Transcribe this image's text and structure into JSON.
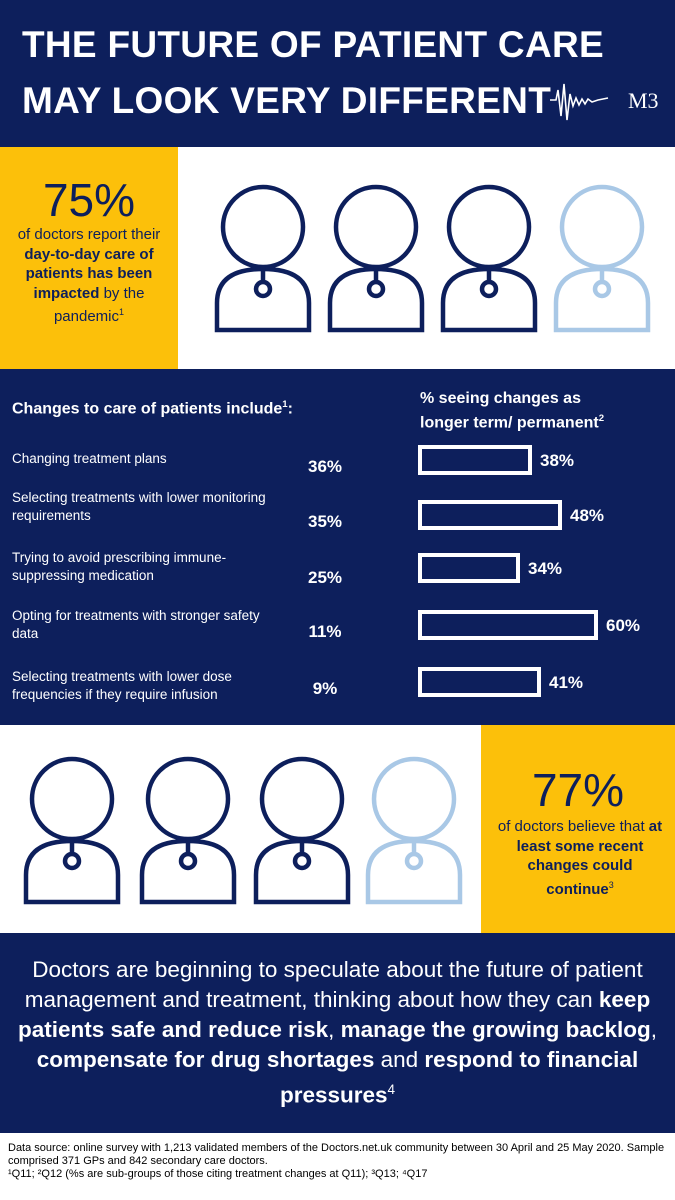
{
  "header": {
    "title_line1": "THE FUTURE OF PATIENT CARE",
    "title_line2": "MAY LOOK VERY DIFFERENT",
    "logo_text": "M3"
  },
  "stat_top": {
    "value": "75%",
    "text_a": "of doctors report their ",
    "text_b": "day-to-day care of patients has been impacted",
    "text_c": " by the pandemic",
    "ref": "1",
    "icons": {
      "filled": 3,
      "total": 4,
      "dark_color": "#0d1f5c",
      "light_color": "#a9c8e6"
    }
  },
  "changes": {
    "title": "Changes to care of patients include",
    "title_ref": "1",
    "title_suffix": ":",
    "perm_title_line1": "% seeing changes as",
    "perm_title_line2": "longer term/ permanent",
    "perm_ref": "2",
    "items": [
      {
        "label": "Changing treatment plans",
        "pct": "36%",
        "perm": 38,
        "perm_label": "38%"
      },
      {
        "label": "Selecting treatments with lower monitoring requirements",
        "pct": "35%",
        "perm": 48,
        "perm_label": "48%"
      },
      {
        "label": "Trying to avoid prescribing immune-suppressing medication",
        "pct": "25%",
        "perm": 34,
        "perm_label": "34%"
      },
      {
        "label": "Opting for treatments with stronger safety data",
        "pct": "11%",
        "perm": 60,
        "perm_label": "60%"
      },
      {
        "label": "Selecting treatments with lower dose frequencies if they require infusion",
        "pct": "9%",
        "perm": 41,
        "perm_label": "41%"
      }
    ]
  },
  "stat_bottom": {
    "value": "77%",
    "text_a": "of doctors believe that ",
    "text_b": "at least some recent changes could continue",
    "ref": "3",
    "icons": {
      "filled": 3,
      "total": 4
    }
  },
  "summary": {
    "p1": "Doctors are beginning to speculate about the future of patient management and treatment, thinking about how they can ",
    "b1": "keep patients safe and reduce risk",
    "p2": ", ",
    "b2": "manage the growing backlog",
    "p3": ", ",
    "b3": "compensate for drug shortages",
    "p4": " and ",
    "b4": "respond to financial pressures",
    "ref": "4"
  },
  "footer": {
    "line1": "Data source: online survey with 1,213 validated members of the Doctors.net.uk community between 30 April and 25 May 2020. Sample comprised 371 GPs and 842 secondary care doctors.",
    "line2": "¹Q11; ²Q12 (%s are sub-groups of those citing treatment changes at Q11); ³Q13; ⁴Q17"
  }
}
